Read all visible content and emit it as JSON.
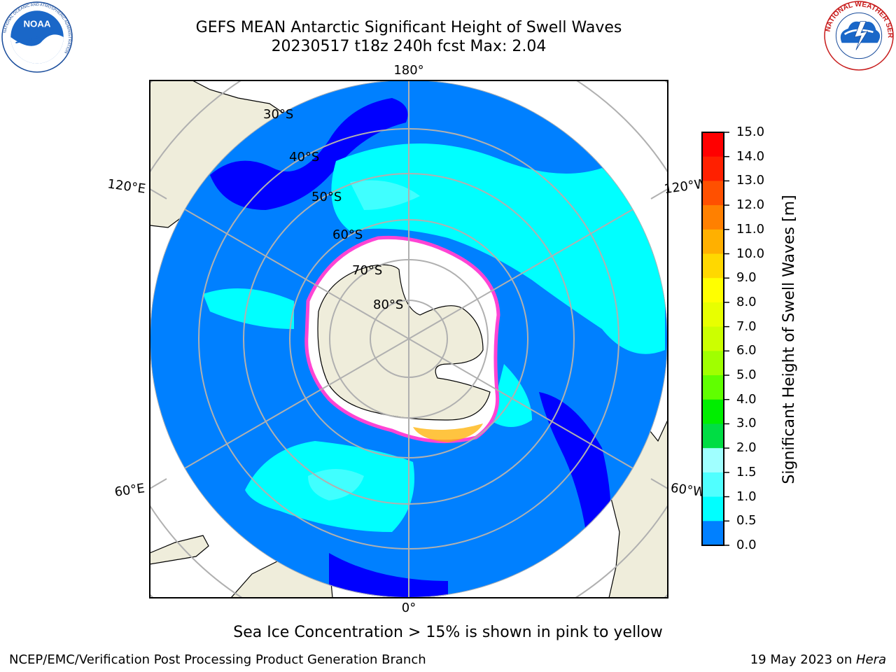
{
  "header": {
    "title_line1": "GEFS MEAN Antarctic Significant Height of Swell Waves",
    "title_line2": "20230517 t18z 240h fcst   Max: 2.04"
  },
  "map": {
    "projection": "south-polar-stereographic",
    "latitude_labels": [
      "30°S",
      "40°S",
      "50°S",
      "60°S",
      "70°S",
      "80°S"
    ],
    "longitude_labels": {
      "top": "180°",
      "bottom": "0°",
      "left_upper": "120°E",
      "left_lower": "60°E",
      "right_upper": "120°W",
      "right_lower": "60°W"
    },
    "colors": {
      "land": "#efeddb",
      "sea_ice": "#ffffff",
      "ice_edge": "#ff44d4",
      "swell_0_0_5": "#0000ff",
      "swell_0_5_1_0": "#0080ff",
      "swell_1_0_1_5": "#00ffff",
      "swell_1_5_2_0": "#40ffff",
      "grid": "#b0b0b0"
    }
  },
  "colorbar": {
    "label": "Significant Height of Swell Waves [m]",
    "ticks": [
      "15.0",
      "14.0",
      "13.0",
      "12.0",
      "11.0",
      "10.0",
      "9.0",
      "8.0",
      "7.0",
      "6.0",
      "5.0",
      "4.0",
      "3.0",
      "2.0",
      "1.5",
      "1.0",
      "0.5",
      "0.0"
    ],
    "colors": [
      "#ff0000",
      "#ff2000",
      "#ff5000",
      "#ff8000",
      "#ffb000",
      "#ffd800",
      "#ffff00",
      "#e8ff00",
      "#ccff00",
      "#a0ff00",
      "#60ff00",
      "#00ee00",
      "#00dd44",
      "#50ff80",
      "#a0ffff",
      "#50ffff",
      "#00ffff",
      "#0080ff",
      "#0000ff"
    ]
  },
  "caption": "Sea Ice Concentration > 15% is shown in pink to yellow",
  "footer": {
    "left": "NCEP/EMC/Verification Post Processing Product Generation Branch",
    "right_prefix": "19 May 2023 on ",
    "right_host": "Hera"
  },
  "logos": {
    "noaa": {
      "text": "NOAA",
      "ring": "NATIONAL OCEANIC AND ATMOSPHERIC ADMINISTRATION · U.S. DEPARTMENT OF COMMERCE"
    },
    "nws": {
      "text": "NATIONAL WEATHER SERVICE"
    }
  }
}
